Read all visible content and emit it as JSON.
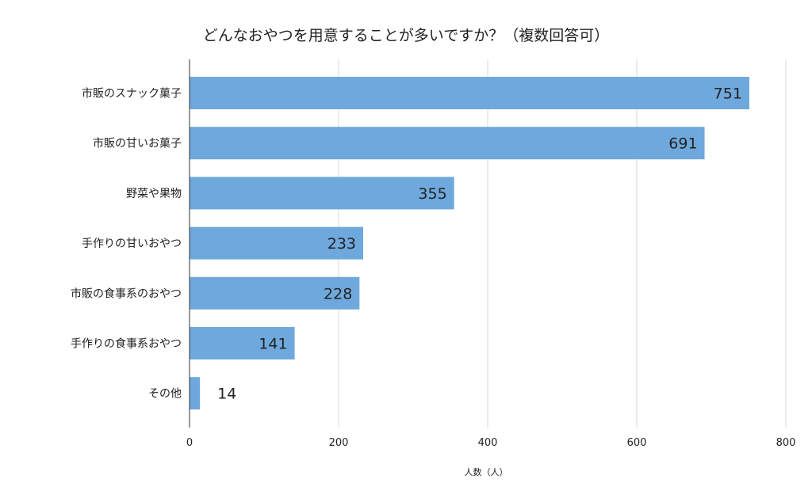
{
  "chart_data": {
    "type": "bar",
    "orientation": "horizontal",
    "title": "どんなおやつを用意することが多いですか？（複数回答可）",
    "xlabel": "人数（人）",
    "ylabel": "",
    "categories": [
      "市販のスナック菓子",
      "市販の甘いお菓子",
      "野菜や果物",
      "手作りの甘いおやつ",
      "市販の食事系のおやつ",
      "手作りの食事系おやつ",
      "その他"
    ],
    "values": [
      751,
      691,
      355,
      233,
      228,
      141,
      14
    ],
    "xlim": [
      0,
      800
    ],
    "xticks": [
      0,
      200,
      400,
      600,
      800
    ],
    "xtick_labels": [
      "0",
      "200",
      "400",
      "600",
      "800"
    ],
    "grid": true,
    "legend": "none",
    "bar_color": "#6fa8dc"
  }
}
